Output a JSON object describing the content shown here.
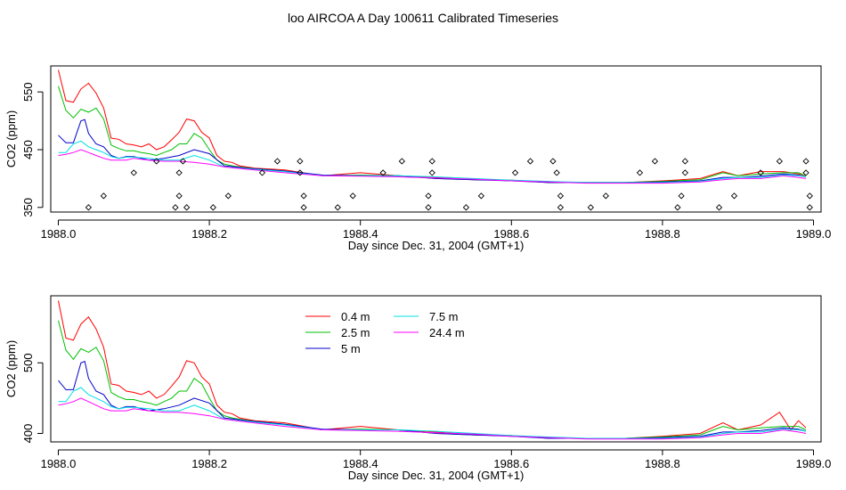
{
  "page_title": "loo AIRCOA A  Day 100611  Calibrated Timeseries",
  "chart_data": [
    {
      "type": "line",
      "xlabel": "Day since Dec. 31, 2004 (GMT+1)",
      "ylabel": "CO2 (ppm)",
      "xlim": [
        1987.99,
        1989.01
      ],
      "ylim": [
        342,
        595
      ],
      "x_ticks": [
        "1988.0",
        "1988.2",
        "1988.4",
        "1988.6",
        "1988.8",
        "1989.0"
      ],
      "y_ticks": [
        "350",
        "450",
        "550"
      ],
      "x_tick_values": [
        1988.0,
        1988.2,
        1988.4,
        1988.6,
        1988.8,
        1989.0
      ],
      "y_tick_values": [
        350,
        450,
        550
      ],
      "grid": false,
      "legend": null,
      "series": [
        {
          "name": "0.4 m",
          "color": "#ff0000",
          "x": [
            1988.0,
            1988.01,
            1988.02,
            1988.03,
            1988.04,
            1988.05,
            1988.06,
            1988.07,
            1988.08,
            1988.09,
            1988.1,
            1988.11,
            1988.12,
            1988.13,
            1988.14,
            1988.15,
            1988.16,
            1988.17,
            1988.18,
            1988.19,
            1988.2,
            1988.21,
            1988.22,
            1988.23,
            1988.24,
            1988.26,
            1988.3,
            1988.35,
            1988.4,
            1988.45,
            1988.5,
            1988.55,
            1988.6,
            1988.65,
            1988.7,
            1988.75,
            1988.8,
            1988.85,
            1988.88,
            1988.9,
            1988.93,
            1988.96,
            1988.98,
            1988.99
          ],
          "y": [
            588,
            535,
            532,
            555,
            565,
            548,
            522,
            470,
            468,
            460,
            458,
            455,
            460,
            450,
            455,
            467,
            480,
            503,
            500,
            480,
            470,
            440,
            430,
            428,
            422,
            418,
            415,
            405,
            410,
            405,
            402,
            398,
            397,
            393,
            393,
            393,
            396,
            400,
            412,
            405,
            412,
            412,
            408,
            405
          ]
        },
        {
          "name": "2.5 m",
          "color": "#00c000",
          "x": [
            1988.0,
            1988.01,
            1988.02,
            1988.03,
            1988.04,
            1988.05,
            1988.06,
            1988.07,
            1988.08,
            1988.09,
            1988.1,
            1988.11,
            1988.12,
            1988.13,
            1988.14,
            1988.15,
            1988.16,
            1988.17,
            1988.18,
            1988.19,
            1988.2,
            1988.21,
            1988.22,
            1988.23,
            1988.24,
            1988.26,
            1988.3,
            1988.35,
            1988.4,
            1988.45,
            1988.5,
            1988.55,
            1988.6,
            1988.65,
            1988.7,
            1988.75,
            1988.8,
            1988.85,
            1988.88,
            1988.9,
            1988.93,
            1988.96,
            1988.98,
            1988.99
          ],
          "y": [
            560,
            518,
            505,
            520,
            515,
            522,
            503,
            458,
            452,
            448,
            448,
            445,
            443,
            440,
            445,
            450,
            460,
            460,
            478,
            470,
            450,
            432,
            425,
            422,
            420,
            417,
            413,
            405,
            406,
            405,
            400,
            398,
            397,
            393,
            393,
            393,
            395,
            398,
            410,
            405,
            408,
            410,
            410,
            405
          ]
        },
        {
          "name": "5 m",
          "color": "#0000cc",
          "x": [
            1988.0,
            1988.01,
            1988.02,
            1988.03,
            1988.035,
            1988.04,
            1988.05,
            1988.06,
            1988.07,
            1988.08,
            1988.09,
            1988.1,
            1988.12,
            1988.14,
            1988.16,
            1988.18,
            1988.2,
            1988.22,
            1988.25,
            1988.3,
            1988.35,
            1988.4,
            1988.45,
            1988.5,
            1988.55,
            1988.6,
            1988.65,
            1988.7,
            1988.75,
            1988.8,
            1988.85,
            1988.88,
            1988.9,
            1988.93,
            1988.96,
            1988.98,
            1988.99
          ],
          "y": [
            475,
            462,
            462,
            500,
            502,
            478,
            460,
            455,
            440,
            435,
            438,
            438,
            432,
            435,
            440,
            450,
            443,
            422,
            418,
            413,
            406,
            405,
            405,
            400,
            398,
            396,
            393,
            393,
            393,
            394,
            396,
            402,
            402,
            404,
            408,
            406,
            403
          ]
        },
        {
          "name": "7.5 m",
          "color": "#00e0e0",
          "x": [
            1988.0,
            1988.01,
            1988.02,
            1988.03,
            1988.04,
            1988.05,
            1988.06,
            1988.07,
            1988.08,
            1988.09,
            1988.1,
            1988.12,
            1988.14,
            1988.16,
            1988.18,
            1988.2,
            1988.22,
            1988.25,
            1988.3,
            1988.35,
            1988.4,
            1988.45,
            1988.5,
            1988.55,
            1988.6,
            1988.65,
            1988.7,
            1988.75,
            1988.8,
            1988.85,
            1988.88,
            1988.9,
            1988.93,
            1988.96,
            1988.98,
            1988.99
          ],
          "y": [
            445,
            445,
            460,
            465,
            455,
            450,
            445,
            438,
            435,
            437,
            437,
            435,
            432,
            432,
            440,
            432,
            420,
            417,
            412,
            405,
            405,
            405,
            403,
            400,
            397,
            395,
            393,
            393,
            393,
            395,
            400,
            402,
            402,
            406,
            405,
            403
          ]
        },
        {
          "name": "24.4 m",
          "color": "#ff00ff",
          "x": [
            1988.0,
            1988.01,
            1988.02,
            1988.03,
            1988.04,
            1988.05,
            1988.06,
            1988.07,
            1988.08,
            1988.09,
            1988.1,
            1988.12,
            1988.14,
            1988.16,
            1988.18,
            1988.2,
            1988.22,
            1988.25,
            1988.3,
            1988.35,
            1988.4,
            1988.45,
            1988.5,
            1988.55,
            1988.6,
            1988.65,
            1988.7,
            1988.75,
            1988.8,
            1988.85,
            1988.88,
            1988.9,
            1988.93,
            1988.96,
            1988.98,
            1988.99
          ],
          "y": [
            440,
            442,
            445,
            450,
            445,
            440,
            435,
            432,
            432,
            432,
            435,
            432,
            430,
            430,
            428,
            425,
            420,
            416,
            410,
            405,
            404,
            403,
            401,
            399,
            396,
            394,
            392,
            392,
            392,
            394,
            398,
            400,
            400,
            405,
            402,
            400
          ]
        }
      ],
      "markers": {
        "style": "open-diamond",
        "x": [
          1988.04,
          1988.06,
          1988.1,
          1988.13,
          1988.155,
          1988.16,
          1988.16,
          1988.165,
          1988.17,
          1988.205,
          1988.225,
          1988.27,
          1988.29,
          1988.32,
          1988.32,
          1988.325,
          1988.325,
          1988.37,
          1988.39,
          1988.43,
          1988.455,
          1988.49,
          1988.49,
          1988.495,
          1988.495,
          1988.54,
          1988.56,
          1988.605,
          1988.625,
          1988.655,
          1988.66,
          1988.665,
          1988.665,
          1988.705,
          1988.725,
          1988.77,
          1988.79,
          1988.82,
          1988.825,
          1988.83,
          1988.83,
          1988.875,
          1988.895,
          1988.93,
          1988.955,
          1988.99,
          1988.99,
          1988.995,
          1988.995
        ],
        "y": [
          350,
          370,
          410,
          430,
          350,
          370,
          410,
          430,
          350,
          350,
          370,
          410,
          430,
          430,
          410,
          370,
          350,
          350,
          370,
          410,
          430,
          350,
          370,
          410,
          430,
          350,
          370,
          410,
          430,
          430,
          410,
          370,
          350,
          350,
          370,
          410,
          430,
          350,
          370,
          410,
          430,
          350,
          370,
          410,
          430,
          430,
          410,
          370,
          350
        ]
      }
    },
    {
      "type": "line",
      "xlabel": "Day since Dec. 31, 2004 (GMT+1)",
      "ylabel": "CO2 (ppm)",
      "xlim": [
        1987.99,
        1989.01
      ],
      "ylim": [
        388,
        595
      ],
      "x_ticks": [
        "1988.0",
        "1988.2",
        "1988.4",
        "1988.6",
        "1988.8",
        "1989.0"
      ],
      "y_ticks": [
        "400",
        "500"
      ],
      "x_tick_values": [
        1988.0,
        1988.2,
        1988.4,
        1988.6,
        1988.8,
        1989.0
      ],
      "y_tick_values": [
        400,
        500
      ],
      "grid": false,
      "legend": "top-center",
      "legend_entries": [
        {
          "label": "0.4 m",
          "color": "#ff0000"
        },
        {
          "label": "2.5 m",
          "color": "#00c000"
        },
        {
          "label": "5 m",
          "color": "#0000cc"
        },
        {
          "label": "7.5 m",
          "color": "#00e0e0"
        },
        {
          "label": "24.4 m",
          "color": "#ff00ff"
        }
      ],
      "series": [
        {
          "name": "0.4 m",
          "color": "#ff0000",
          "x": [
            1988.0,
            1988.01,
            1988.02,
            1988.03,
            1988.04,
            1988.05,
            1988.06,
            1988.07,
            1988.08,
            1988.09,
            1988.1,
            1988.11,
            1988.12,
            1988.13,
            1988.14,
            1988.15,
            1988.16,
            1988.17,
            1988.18,
            1988.19,
            1988.2,
            1988.21,
            1988.22,
            1988.23,
            1988.24,
            1988.26,
            1988.3,
            1988.35,
            1988.4,
            1988.45,
            1988.5,
            1988.55,
            1988.6,
            1988.65,
            1988.7,
            1988.75,
            1988.8,
            1988.85,
            1988.88,
            1988.9,
            1988.93,
            1988.955,
            1988.97,
            1988.98,
            1988.99
          ],
          "y": [
            588,
            535,
            532,
            555,
            565,
            548,
            522,
            470,
            468,
            460,
            458,
            455,
            460,
            450,
            455,
            467,
            480,
            503,
            500,
            480,
            470,
            440,
            430,
            428,
            422,
            418,
            415,
            405,
            410,
            405,
            402,
            398,
            397,
            393,
            393,
            393,
            396,
            400,
            415,
            405,
            412,
            430,
            405,
            418,
            408
          ]
        },
        {
          "name": "2.5 m",
          "color": "#00c000",
          "x": [
            1988.0,
            1988.01,
            1988.02,
            1988.03,
            1988.04,
            1988.05,
            1988.06,
            1988.07,
            1988.08,
            1988.09,
            1988.1,
            1988.11,
            1988.12,
            1988.13,
            1988.14,
            1988.15,
            1988.16,
            1988.17,
            1988.18,
            1988.19,
            1988.2,
            1988.21,
            1988.22,
            1988.23,
            1988.24,
            1988.26,
            1988.3,
            1988.35,
            1988.4,
            1988.45,
            1988.5,
            1988.55,
            1988.6,
            1988.65,
            1988.7,
            1988.75,
            1988.8,
            1988.85,
            1988.88,
            1988.9,
            1988.93,
            1988.96,
            1988.98,
            1988.99
          ],
          "y": [
            560,
            518,
            505,
            520,
            515,
            522,
            503,
            458,
            452,
            448,
            448,
            445,
            443,
            440,
            445,
            450,
            460,
            460,
            478,
            470,
            450,
            432,
            425,
            422,
            420,
            417,
            413,
            405,
            406,
            405,
            400,
            398,
            397,
            393,
            393,
            393,
            395,
            398,
            410,
            405,
            408,
            410,
            410,
            405
          ]
        },
        {
          "name": "5 m",
          "color": "#0000cc",
          "x": [
            1988.0,
            1988.01,
            1988.02,
            1988.03,
            1988.035,
            1988.04,
            1988.05,
            1988.06,
            1988.07,
            1988.08,
            1988.09,
            1988.1,
            1988.12,
            1988.14,
            1988.16,
            1988.18,
            1988.2,
            1988.22,
            1988.25,
            1988.3,
            1988.35,
            1988.4,
            1988.45,
            1988.5,
            1988.55,
            1988.6,
            1988.65,
            1988.7,
            1988.75,
            1988.8,
            1988.85,
            1988.88,
            1988.9,
            1988.93,
            1988.96,
            1988.98,
            1988.99
          ],
          "y": [
            475,
            462,
            462,
            500,
            502,
            478,
            460,
            455,
            440,
            435,
            438,
            438,
            432,
            435,
            440,
            450,
            443,
            422,
            418,
            413,
            406,
            405,
            405,
            400,
            398,
            396,
            393,
            393,
            393,
            394,
            396,
            402,
            402,
            404,
            408,
            406,
            403
          ]
        },
        {
          "name": "7.5 m",
          "color": "#00e0e0",
          "x": [
            1988.0,
            1988.01,
            1988.02,
            1988.03,
            1988.04,
            1988.05,
            1988.06,
            1988.07,
            1988.08,
            1988.09,
            1988.1,
            1988.12,
            1988.14,
            1988.16,
            1988.18,
            1988.2,
            1988.22,
            1988.25,
            1988.3,
            1988.35,
            1988.4,
            1988.45,
            1988.5,
            1988.55,
            1988.6,
            1988.65,
            1988.7,
            1988.75,
            1988.8,
            1988.85,
            1988.88,
            1988.9,
            1988.93,
            1988.96,
            1988.98,
            1988.99
          ],
          "y": [
            445,
            445,
            460,
            465,
            455,
            450,
            445,
            438,
            435,
            437,
            437,
            435,
            432,
            432,
            440,
            432,
            420,
            417,
            412,
            405,
            405,
            405,
            403,
            400,
            397,
            395,
            393,
            393,
            393,
            395,
            400,
            402,
            402,
            406,
            405,
            403
          ]
        },
        {
          "name": "24.4 m",
          "color": "#ff00ff",
          "x": [
            1988.0,
            1988.01,
            1988.02,
            1988.03,
            1988.04,
            1988.05,
            1988.06,
            1988.07,
            1988.08,
            1988.09,
            1988.1,
            1988.12,
            1988.14,
            1988.16,
            1988.18,
            1988.2,
            1988.22,
            1988.25,
            1988.3,
            1988.35,
            1988.4,
            1988.45,
            1988.5,
            1988.55,
            1988.6,
            1988.65,
            1988.7,
            1988.75,
            1988.8,
            1988.85,
            1988.88,
            1988.9,
            1988.93,
            1988.96,
            1988.98,
            1988.99
          ],
          "y": [
            440,
            442,
            445,
            450,
            445,
            440,
            435,
            432,
            432,
            432,
            435,
            432,
            430,
            430,
            428,
            425,
            420,
            416,
            410,
            405,
            404,
            403,
            401,
            399,
            396,
            394,
            392,
            392,
            392,
            394,
            398,
            400,
            400,
            405,
            402,
            400
          ]
        }
      ]
    }
  ]
}
